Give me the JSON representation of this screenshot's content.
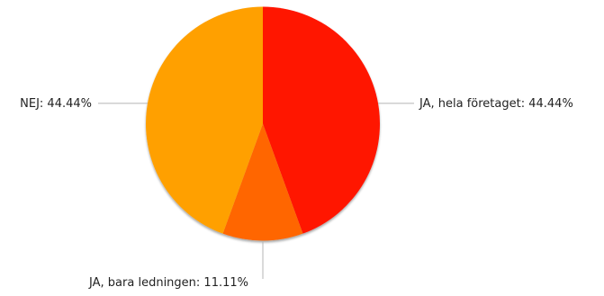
{
  "chart_data": {
    "type": "pie",
    "title": "",
    "slices": [
      {
        "label": "JA, hela företaget",
        "value": 44.44,
        "color": "#ff1300",
        "label_text": "JA, hela företaget: 44.44%"
      },
      {
        "label": "JA, bara ledningen",
        "value": 11.11,
        "color": "#ff6600",
        "label_text": "JA, bara ledningen: 11.11%"
      },
      {
        "label": "NEJ",
        "value": 44.44,
        "color": "#ffa000",
        "label_text": "NEJ: 44.44%"
      }
    ],
    "start_angle": "12 o'clock",
    "direction": "clockwise",
    "legend": "none",
    "label_style": "outside with leader lines"
  }
}
